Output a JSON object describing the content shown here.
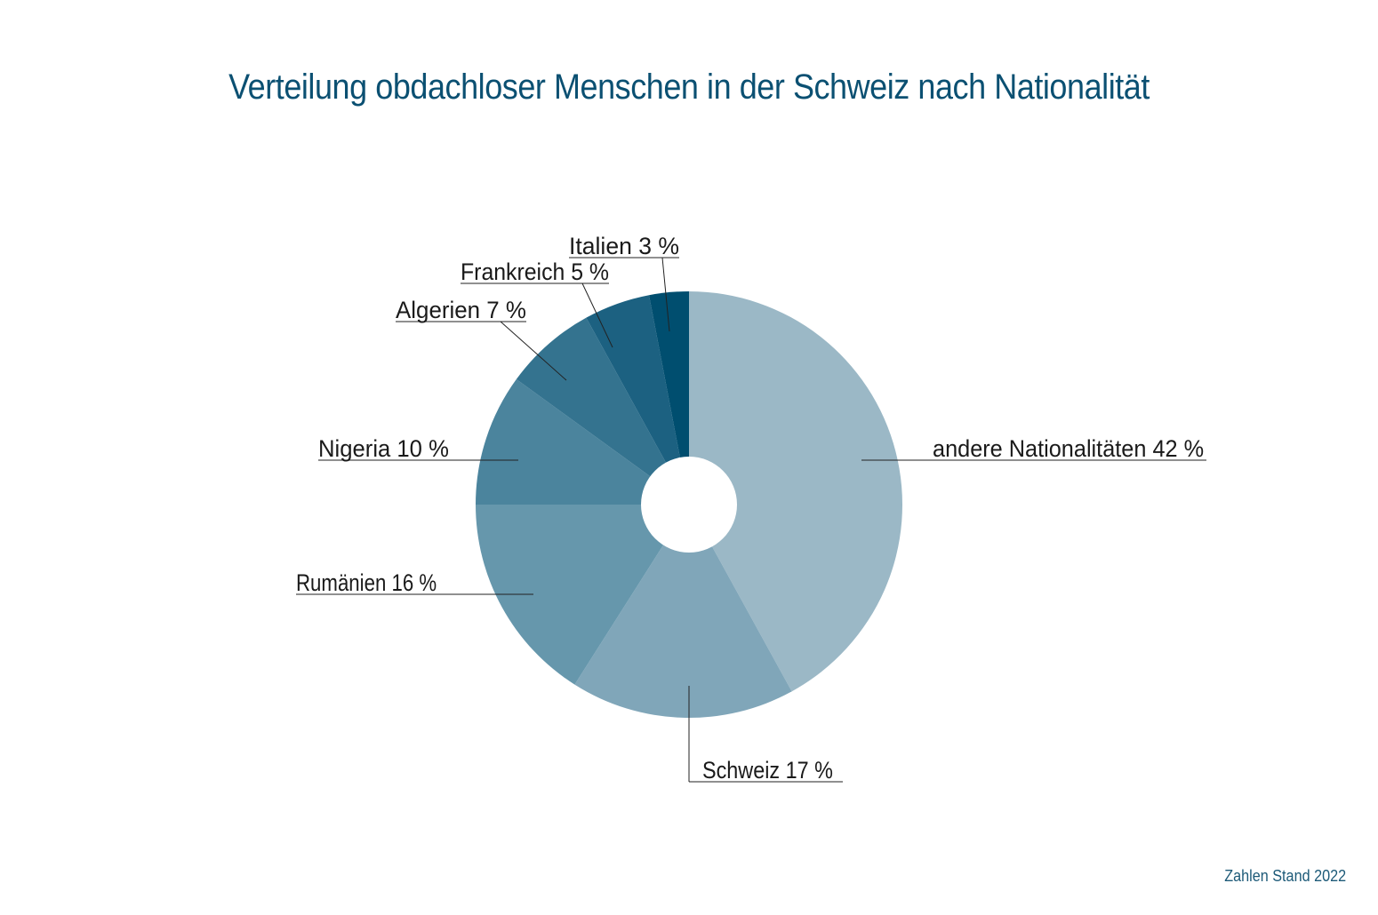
{
  "chart_data": {
    "type": "pie",
    "donut": true,
    "title": "Verteilung obdachloser Menschen in der Schweiz nach Nationalität",
    "start": "top, clockwise",
    "slices": [
      {
        "label": "andere Nationalitäten",
        "value": 42,
        "text": "andere Nationalitäten  42 %",
        "color": "#9bb8c6"
      },
      {
        "label": "Schweiz",
        "value": 17,
        "text": "Schweiz  17 %",
        "color": "#80a6b9"
      },
      {
        "label": "Rumänien",
        "value": 16,
        "text": "Rumänien  16 %",
        "color": "#6697ac"
      },
      {
        "label": "Nigeria",
        "value": 10,
        "text": "Nigeria  10 %",
        "color": "#4b849d"
      },
      {
        "label": "Algerien",
        "value": 7,
        "text": "Algerien  7 %",
        "color": "#34738f"
      },
      {
        "label": "Frankreich",
        "value": 5,
        "text": "Frankreich  5 %",
        "color": "#1c6181"
      },
      {
        "label": "Italien",
        "value": 3,
        "text": "Italien  3 %",
        "color": "#004e6f"
      }
    ]
  },
  "footnote": "Zahlen Stand 2022"
}
